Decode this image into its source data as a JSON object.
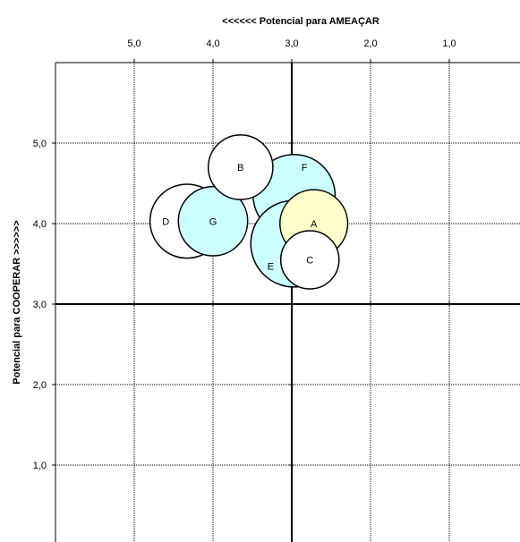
{
  "chart_data": {
    "type": "bubble",
    "title": "",
    "xlabel": "<<<<<<   Potencial para AMEAÇAR",
    "ylabel": "Potencial para COOPERAR   >>>>>>",
    "x_axis": {
      "reversed": true,
      "position": "top",
      "range": [
        6.0,
        0.0
      ],
      "ticks": [
        "5,0",
        "4,0",
        "3,0",
        "2,0",
        "1,0"
      ],
      "tick_values": [
        5,
        4,
        3,
        2,
        1
      ]
    },
    "y_axis": {
      "range": [
        0.0,
        6.0
      ],
      "ticks": [
        "5,0",
        "4,0",
        "3,0",
        "2,0",
        "1,0"
      ],
      "tick_values": [
        5,
        4,
        3,
        2,
        1
      ]
    },
    "center": {
      "x": 3.0,
      "y": 3.0
    },
    "grid": true,
    "colors": {
      "white": "#ffffff",
      "cyan": "#ccffff",
      "yellow": "#ffffcc",
      "grid": "#000000",
      "stroke": "#000000"
    },
    "bubbles": [
      {
        "label": "F",
        "x": 2.97,
        "y": 4.35,
        "radius": 0.52,
        "color": "cyan",
        "label_offset": [
          -0.13,
          0.35
        ]
      },
      {
        "label": "E",
        "x": 2.97,
        "y": 3.75,
        "radius": 0.55,
        "color": "cyan",
        "label_offset": [
          0.3,
          -0.28
        ]
      },
      {
        "label": "A",
        "x": 2.72,
        "y": 4.0,
        "radius": 0.43,
        "color": "yellow",
        "label_offset": [
          0,
          0
        ]
      },
      {
        "label": "C",
        "x": 2.77,
        "y": 3.55,
        "radius": 0.37,
        "color": "white",
        "label_offset": [
          0,
          0
        ]
      },
      {
        "label": "D",
        "x": 4.33,
        "y": 4.03,
        "radius": 0.47,
        "color": "white",
        "label_offset": [
          0.27,
          0
        ]
      },
      {
        "label": "G",
        "x": 4.0,
        "y": 4.03,
        "radius": 0.44,
        "color": "cyan",
        "label_offset": [
          0,
          0
        ]
      },
      {
        "label": "B",
        "x": 3.65,
        "y": 4.7,
        "radius": 0.41,
        "color": "white",
        "label_offset": [
          0,
          0
        ]
      }
    ]
  }
}
